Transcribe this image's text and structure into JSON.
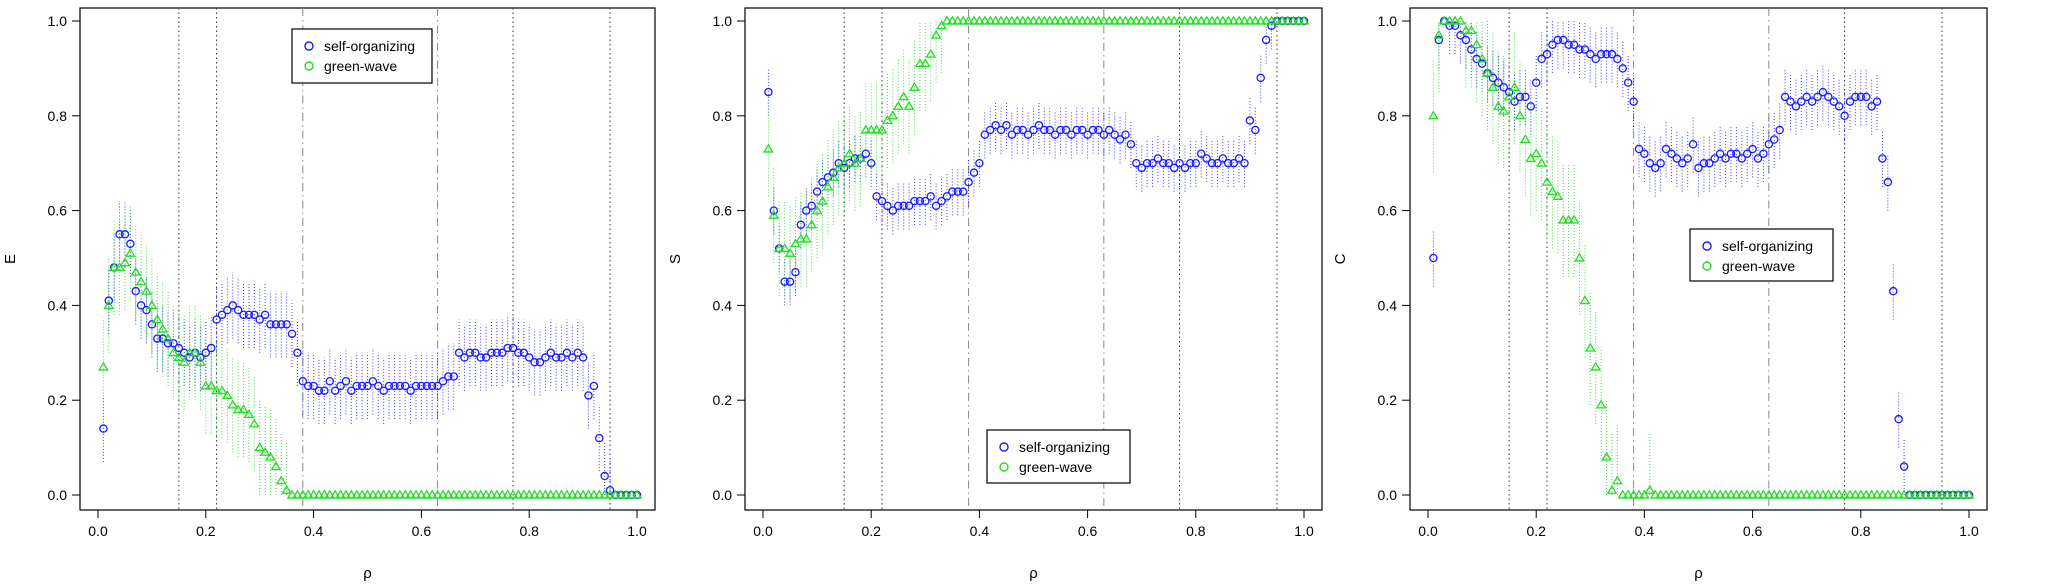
{
  "colors": {
    "self_organizing": "#1a1aff",
    "green_wave": "#22dd22",
    "vline_dotted": "#333333",
    "vline_dashdot": "#888888",
    "axis": "#000000"
  },
  "shared": {
    "xlabel": "ρ",
    "xlim": [
      0,
      1
    ],
    "ylim": [
      0,
      1
    ],
    "xticks": [
      "0.0",
      "0.2",
      "0.4",
      "0.6",
      "0.8",
      "1.0"
    ],
    "yticks": [
      "0.0",
      "0.2",
      "0.4",
      "0.6",
      "0.8",
      "1.0"
    ],
    "vlines_dotted": [
      0.15,
      0.22,
      0.77,
      0.95
    ],
    "vlines_dashdot": [
      0.38,
      0.63
    ]
  },
  "chart_data": [
    {
      "type": "scatter",
      "ylabel": "E",
      "legend": {
        "position": "top-center",
        "entries": [
          "self-organizing",
          "green-wave"
        ]
      },
      "x": [
        0.01,
        0.02,
        0.03,
        0.04,
        0.05,
        0.06,
        0.07,
        0.08,
        0.09,
        0.1,
        0.11,
        0.12,
        0.13,
        0.14,
        0.15,
        0.16,
        0.17,
        0.18,
        0.19,
        0.2,
        0.21,
        0.22,
        0.23,
        0.24,
        0.25,
        0.26,
        0.27,
        0.28,
        0.29,
        0.3,
        0.31,
        0.32,
        0.33,
        0.34,
        0.35,
        0.36,
        0.37,
        0.38,
        0.39,
        0.4,
        0.41,
        0.42,
        0.43,
        0.44,
        0.45,
        0.46,
        0.47,
        0.48,
        0.49,
        0.5,
        0.51,
        0.52,
        0.53,
        0.54,
        0.55,
        0.56,
        0.57,
        0.58,
        0.59,
        0.6,
        0.61,
        0.62,
        0.63,
        0.64,
        0.65,
        0.66,
        0.67,
        0.68,
        0.69,
        0.7,
        0.71,
        0.72,
        0.73,
        0.74,
        0.75,
        0.76,
        0.77,
        0.78,
        0.79,
        0.8,
        0.81,
        0.82,
        0.83,
        0.84,
        0.85,
        0.86,
        0.87,
        0.88,
        0.89,
        0.9,
        0.91,
        0.92,
        0.93,
        0.94,
        0.95,
        0.96,
        0.97,
        0.98,
        0.99,
        1.0
      ],
      "series": [
        {
          "name": "self-organizing",
          "values": [
            0.14,
            0.41,
            0.48,
            0.55,
            0.55,
            0.53,
            0.43,
            0.4,
            0.39,
            0.36,
            0.33,
            0.33,
            0.32,
            0.32,
            0.31,
            0.3,
            0.29,
            0.3,
            0.29,
            0.3,
            0.31,
            0.37,
            0.38,
            0.39,
            0.4,
            0.39,
            0.38,
            0.38,
            0.38,
            0.37,
            0.38,
            0.36,
            0.36,
            0.36,
            0.36,
            0.34,
            0.3,
            0.24,
            0.23,
            0.23,
            0.22,
            0.22,
            0.24,
            0.22,
            0.23,
            0.24,
            0.22,
            0.23,
            0.23,
            0.23,
            0.24,
            0.23,
            0.22,
            0.23,
            0.23,
            0.23,
            0.23,
            0.22,
            0.23,
            0.23,
            0.23,
            0.23,
            0.23,
            0.24,
            0.25,
            0.25,
            0.3,
            0.29,
            0.3,
            0.3,
            0.29,
            0.29,
            0.3,
            0.3,
            0.3,
            0.31,
            0.31,
            0.3,
            0.3,
            0.29,
            0.28,
            0.28,
            0.29,
            0.3,
            0.29,
            0.29,
            0.3,
            0.29,
            0.3,
            0.29,
            0.21,
            0.23,
            0.12,
            0.04,
            0.01,
            0.0,
            0.0,
            0.0,
            0.0,
            0.0
          ],
          "err": 0.07
        },
        {
          "name": "green-wave",
          "values": [
            0.27,
            0.4,
            0.48,
            0.48,
            0.49,
            0.51,
            0.47,
            0.45,
            0.43,
            0.4,
            0.37,
            0.35,
            0.33,
            0.3,
            0.29,
            0.28,
            0.3,
            0.3,
            0.28,
            0.23,
            0.23,
            0.22,
            0.22,
            0.21,
            0.19,
            0.18,
            0.18,
            0.17,
            0.15,
            0.1,
            0.09,
            0.08,
            0.06,
            0.03,
            0.01,
            0.0,
            0.0,
            0.0,
            0.0,
            0.0,
            0.0,
            0.0,
            0.0,
            0.0,
            0.0,
            0.0,
            0.0,
            0.0,
            0.0,
            0.0,
            0.0,
            0.0,
            0.0,
            0.0,
            0.0,
            0.0,
            0.0,
            0.0,
            0.0,
            0.0,
            0.0,
            0.0,
            0.0,
            0.0,
            0.0,
            0.0,
            0.0,
            0.0,
            0.0,
            0.0,
            0.0,
            0.0,
            0.0,
            0.0,
            0.0,
            0.0,
            0.0,
            0.0,
            0.0,
            0.0,
            0.0,
            0.0,
            0.0,
            0.0,
            0.0,
            0.0,
            0.0,
            0.0,
            0.0,
            0.0,
            0.0,
            0.0,
            0.0,
            0.0,
            0.0,
            0.0,
            0.0,
            0.0,
            0.0,
            0.0
          ],
          "err": 0.1
        }
      ]
    },
    {
      "type": "scatter",
      "ylabel": "S",
      "legend": {
        "position": "bottom-center",
        "entries": [
          "self-organizing",
          "green-wave"
        ]
      },
      "x": [
        0.01,
        0.02,
        0.03,
        0.04,
        0.05,
        0.06,
        0.07,
        0.08,
        0.09,
        0.1,
        0.11,
        0.12,
        0.13,
        0.14,
        0.15,
        0.16,
        0.17,
        0.18,
        0.19,
        0.2,
        0.21,
        0.22,
        0.23,
        0.24,
        0.25,
        0.26,
        0.27,
        0.28,
        0.29,
        0.3,
        0.31,
        0.32,
        0.33,
        0.34,
        0.35,
        0.36,
        0.37,
        0.38,
        0.39,
        0.4,
        0.41,
        0.42,
        0.43,
        0.44,
        0.45,
        0.46,
        0.47,
        0.48,
        0.49,
        0.5,
        0.51,
        0.52,
        0.53,
        0.54,
        0.55,
        0.56,
        0.57,
        0.58,
        0.59,
        0.6,
        0.61,
        0.62,
        0.63,
        0.64,
        0.65,
        0.66,
        0.67,
        0.68,
        0.69,
        0.7,
        0.71,
        0.72,
        0.73,
        0.74,
        0.75,
        0.76,
        0.77,
        0.78,
        0.79,
        0.8,
        0.81,
        0.82,
        0.83,
        0.84,
        0.85,
        0.86,
        0.87,
        0.88,
        0.89,
        0.9,
        0.91,
        0.92,
        0.93,
        0.94,
        0.95,
        0.96,
        0.97,
        0.98,
        0.99,
        1.0
      ],
      "series": [
        {
          "name": "self-organizing",
          "values": [
            0.85,
            0.6,
            0.52,
            0.45,
            0.45,
            0.47,
            0.57,
            0.6,
            0.61,
            0.64,
            0.66,
            0.67,
            0.68,
            0.7,
            0.69,
            0.7,
            0.71,
            0.71,
            0.72,
            0.7,
            0.63,
            0.62,
            0.61,
            0.6,
            0.61,
            0.61,
            0.61,
            0.62,
            0.62,
            0.62,
            0.63,
            0.61,
            0.62,
            0.63,
            0.64,
            0.64,
            0.64,
            0.66,
            0.68,
            0.7,
            0.76,
            0.77,
            0.78,
            0.77,
            0.78,
            0.76,
            0.77,
            0.77,
            0.76,
            0.77,
            0.78,
            0.77,
            0.77,
            0.76,
            0.77,
            0.77,
            0.76,
            0.77,
            0.77,
            0.76,
            0.77,
            0.77,
            0.76,
            0.77,
            0.76,
            0.75,
            0.76,
            0.74,
            0.7,
            0.69,
            0.7,
            0.7,
            0.71,
            0.7,
            0.7,
            0.69,
            0.7,
            0.69,
            0.7,
            0.7,
            0.72,
            0.71,
            0.7,
            0.7,
            0.71,
            0.7,
            0.7,
            0.71,
            0.7,
            0.79,
            0.77,
            0.88,
            0.96,
            0.99,
            1.0,
            1.0,
            1.0,
            1.0,
            1.0,
            1.0
          ],
          "err": 0.05
        },
        {
          "name": "green-wave",
          "values": [
            0.73,
            0.59,
            0.52,
            0.52,
            0.51,
            0.53,
            0.54,
            0.54,
            0.57,
            0.6,
            0.62,
            0.65,
            0.67,
            0.69,
            0.7,
            0.72,
            0.7,
            0.71,
            0.77,
            0.77,
            0.77,
            0.77,
            0.79,
            0.8,
            0.82,
            0.84,
            0.82,
            0.86,
            0.91,
            0.91,
            0.93,
            0.97,
            0.99,
            1.0,
            1.0,
            1.0,
            1.0,
            1.0,
            1.0,
            1.0,
            1.0,
            1.0,
            1.0,
            1.0,
            1.0,
            1.0,
            1.0,
            1.0,
            1.0,
            1.0,
            1.0,
            1.0,
            1.0,
            1.0,
            1.0,
            1.0,
            1.0,
            1.0,
            1.0,
            1.0,
            1.0,
            1.0,
            1.0,
            1.0,
            1.0,
            1.0,
            1.0,
            1.0,
            1.0,
            1.0,
            1.0,
            1.0,
            1.0,
            1.0,
            1.0,
            1.0,
            1.0,
            1.0,
            1.0,
            1.0,
            1.0,
            1.0,
            1.0,
            1.0,
            1.0,
            1.0,
            1.0,
            1.0,
            1.0,
            1.0,
            1.0,
            1.0,
            1.0,
            1.0,
            1.0,
            1.0,
            1.0,
            1.0,
            1.0,
            1.0
          ],
          "err": 0.1
        }
      ]
    },
    {
      "type": "scatter",
      "ylabel": "C",
      "legend": {
        "position": "center-left",
        "entries": [
          "self-organizing",
          "green-wave"
        ]
      },
      "x": [
        0.01,
        0.02,
        0.03,
        0.04,
        0.05,
        0.06,
        0.07,
        0.08,
        0.09,
        0.1,
        0.11,
        0.12,
        0.13,
        0.14,
        0.15,
        0.16,
        0.17,
        0.18,
        0.19,
        0.2,
        0.21,
        0.22,
        0.23,
        0.24,
        0.25,
        0.26,
        0.27,
        0.28,
        0.29,
        0.3,
        0.31,
        0.32,
        0.33,
        0.34,
        0.35,
        0.36,
        0.37,
        0.38,
        0.39,
        0.4,
        0.41,
        0.42,
        0.43,
        0.44,
        0.45,
        0.46,
        0.47,
        0.48,
        0.49,
        0.5,
        0.51,
        0.52,
        0.53,
        0.54,
        0.55,
        0.56,
        0.57,
        0.58,
        0.59,
        0.6,
        0.61,
        0.62,
        0.63,
        0.64,
        0.65,
        0.66,
        0.67,
        0.68,
        0.69,
        0.7,
        0.71,
        0.72,
        0.73,
        0.74,
        0.75,
        0.76,
        0.77,
        0.78,
        0.79,
        0.8,
        0.81,
        0.82,
        0.83,
        0.84,
        0.85,
        0.86,
        0.87,
        0.88,
        0.89,
        0.9,
        0.91,
        0.92,
        0.93,
        0.94,
        0.95,
        0.96,
        0.97,
        0.98,
        0.99,
        1.0
      ],
      "series": [
        {
          "name": "self-organizing",
          "values": [
            0.5,
            0.96,
            1.0,
            0.99,
            0.99,
            0.97,
            0.96,
            0.94,
            0.92,
            0.91,
            0.89,
            0.88,
            0.87,
            0.86,
            0.85,
            0.83,
            0.84,
            0.84,
            0.82,
            0.87,
            0.92,
            0.93,
            0.95,
            0.96,
            0.96,
            0.95,
            0.95,
            0.94,
            0.94,
            0.93,
            0.92,
            0.93,
            0.93,
            0.93,
            0.92,
            0.9,
            0.87,
            0.83,
            0.73,
            0.72,
            0.7,
            0.69,
            0.7,
            0.73,
            0.72,
            0.71,
            0.7,
            0.71,
            0.74,
            0.69,
            0.7,
            0.7,
            0.71,
            0.72,
            0.71,
            0.72,
            0.72,
            0.71,
            0.72,
            0.73,
            0.71,
            0.72,
            0.74,
            0.75,
            0.77,
            0.84,
            0.83,
            0.82,
            0.83,
            0.84,
            0.83,
            0.84,
            0.85,
            0.84,
            0.83,
            0.82,
            0.8,
            0.83,
            0.84,
            0.84,
            0.84,
            0.82,
            0.83,
            0.71,
            0.66,
            0.43,
            0.16,
            0.06,
            0.0,
            0.0,
            0.0,
            0.0,
            0.0,
            0.0,
            0.0,
            0.0,
            0.0,
            0.0,
            0.0,
            0.0
          ],
          "err": 0.06
        },
        {
          "name": "green-wave",
          "values": [
            0.8,
            0.97,
            1.0,
            1.0,
            1.0,
            1.0,
            0.98,
            0.98,
            0.95,
            0.92,
            0.89,
            0.86,
            0.82,
            0.81,
            0.84,
            0.86,
            0.8,
            0.75,
            0.71,
            0.72,
            0.7,
            0.66,
            0.64,
            0.63,
            0.58,
            0.58,
            0.58,
            0.5,
            0.41,
            0.31,
            0.27,
            0.19,
            0.08,
            0.01,
            0.03,
            0.0,
            0.0,
            0.0,
            0.0,
            0.0,
            0.01,
            0.0,
            0.0,
            0.0,
            0.0,
            0.0,
            0.0,
            0.0,
            0.0,
            0.0,
            0.0,
            0.0,
            0.0,
            0.0,
            0.0,
            0.0,
            0.0,
            0.0,
            0.0,
            0.0,
            0.0,
            0.0,
            0.0,
            0.0,
            0.0,
            0.0,
            0.0,
            0.0,
            0.0,
            0.0,
            0.0,
            0.0,
            0.0,
            0.0,
            0.0,
            0.0,
            0.0,
            0.0,
            0.0,
            0.0,
            0.0,
            0.0,
            0.0,
            0.0,
            0.0,
            0.0,
            0.0,
            0.0,
            0.0,
            0.0,
            0.0,
            0.0,
            0.0,
            0.0,
            0.0,
            0.0,
            0.0,
            0.0,
            0.0,
            0.0
          ],
          "err": 0.12
        }
      ]
    }
  ]
}
